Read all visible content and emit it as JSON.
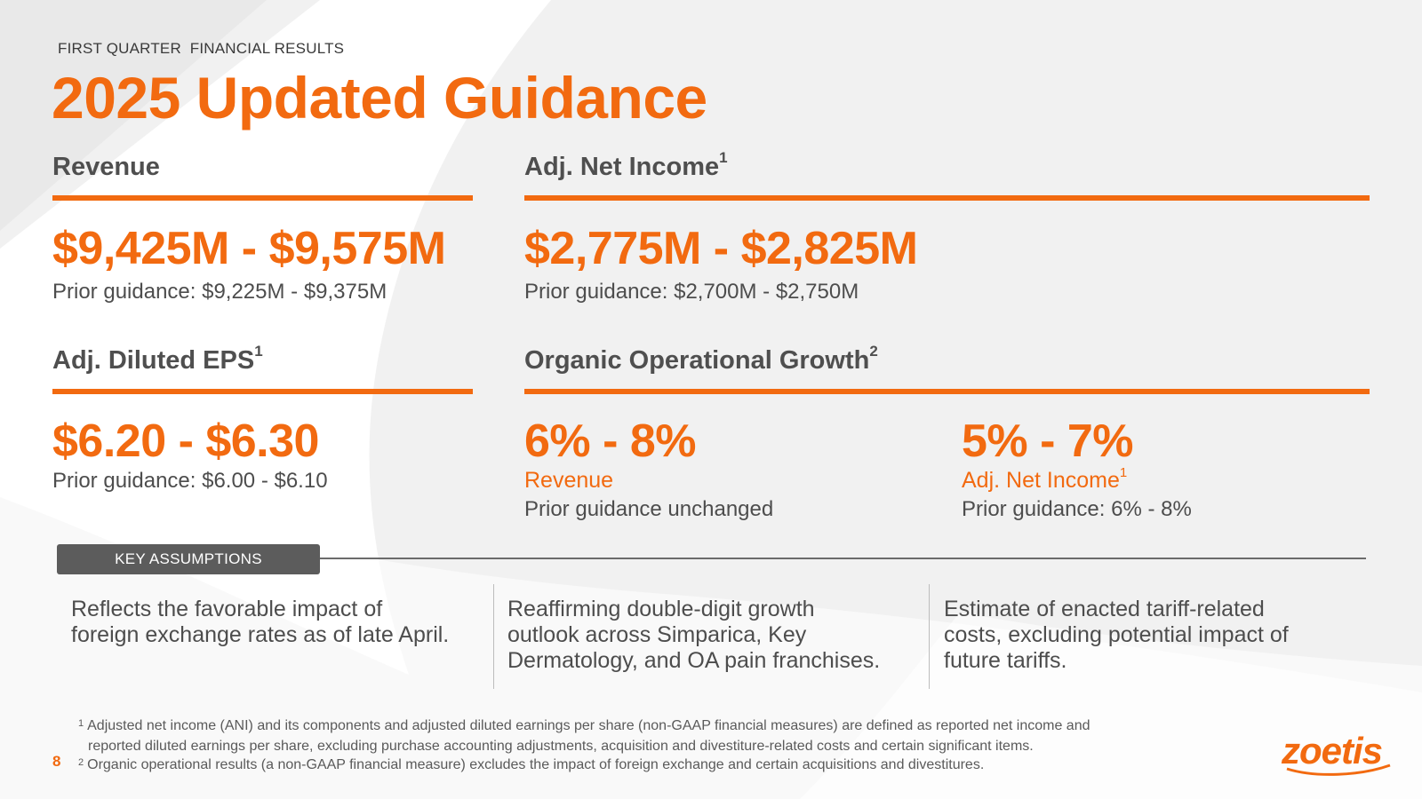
{
  "header": {
    "eyebrow": "FIRST QUARTER  FINANCIAL RESULTS",
    "title": "2025 Updated Guidance"
  },
  "sections": {
    "revenue": {
      "heading": "Revenue",
      "value": "$9,425M - $9,575M",
      "prior": "Prior guidance: $9,225M - $9,375M"
    },
    "adj_net_income": {
      "heading": "Adj. Net Income",
      "footnote_ref": "1",
      "value": "$2,775M - $2,825M",
      "prior": "Prior guidance: $2,700M - $2,750M"
    },
    "adj_diluted_eps": {
      "heading": "Adj. Diluted EPS",
      "footnote_ref": "1",
      "value": "$6.20 - $6.30",
      "prior": "Prior guidance: $6.00 - $6.10"
    },
    "organic_growth": {
      "heading": "Organic Operational Growth",
      "footnote_ref": "2",
      "revenue": {
        "value": "6% - 8%",
        "label": "Revenue",
        "prior": "Prior guidance unchanged"
      },
      "net_income": {
        "value": "5% - 7%",
        "label": "Adj. Net Income",
        "footnote_ref": "1",
        "prior": "Prior guidance: 6% - 8%"
      }
    }
  },
  "key_assumptions": {
    "label": "KEY ASSUMPTIONS",
    "items": [
      {
        "line1": "Reflects the favorable impact of",
        "line2": "foreign exchange rates as of late April.",
        "line3": ""
      },
      {
        "line1": "Reaffirming double-digit growth",
        "line2": "outlook across Simparica, Key",
        "line3": "Dermatology, and OA pain franchises."
      },
      {
        "line1": "Estimate of enacted tariff-related",
        "line2": "costs, excluding potential impact of",
        "line3": "future tariffs."
      }
    ]
  },
  "footnotes": [
    {
      "num": "1",
      "line1": "Adjusted net income (ANI) and its components and adjusted diluted earnings per share (non-GAAP financial measures) are defined as reported net income and",
      "line2": "reported diluted earnings per share, excluding purchase accounting adjustments, acquisition and divestiture-related costs and certain significant items."
    },
    {
      "num": "2",
      "line1": "Organic operational results (a non-GAAP financial measure) excludes the impact of foreign exchange and certain acquisitions and divestitures.",
      "line2": ""
    }
  ],
  "page_number": "8",
  "logo_text": "zoetis",
  "colors": {
    "accent": "#f26a10",
    "text": "#4d4d4d",
    "tag_bg": "#5c5c5c",
    "background": "#f1f1f1"
  }
}
